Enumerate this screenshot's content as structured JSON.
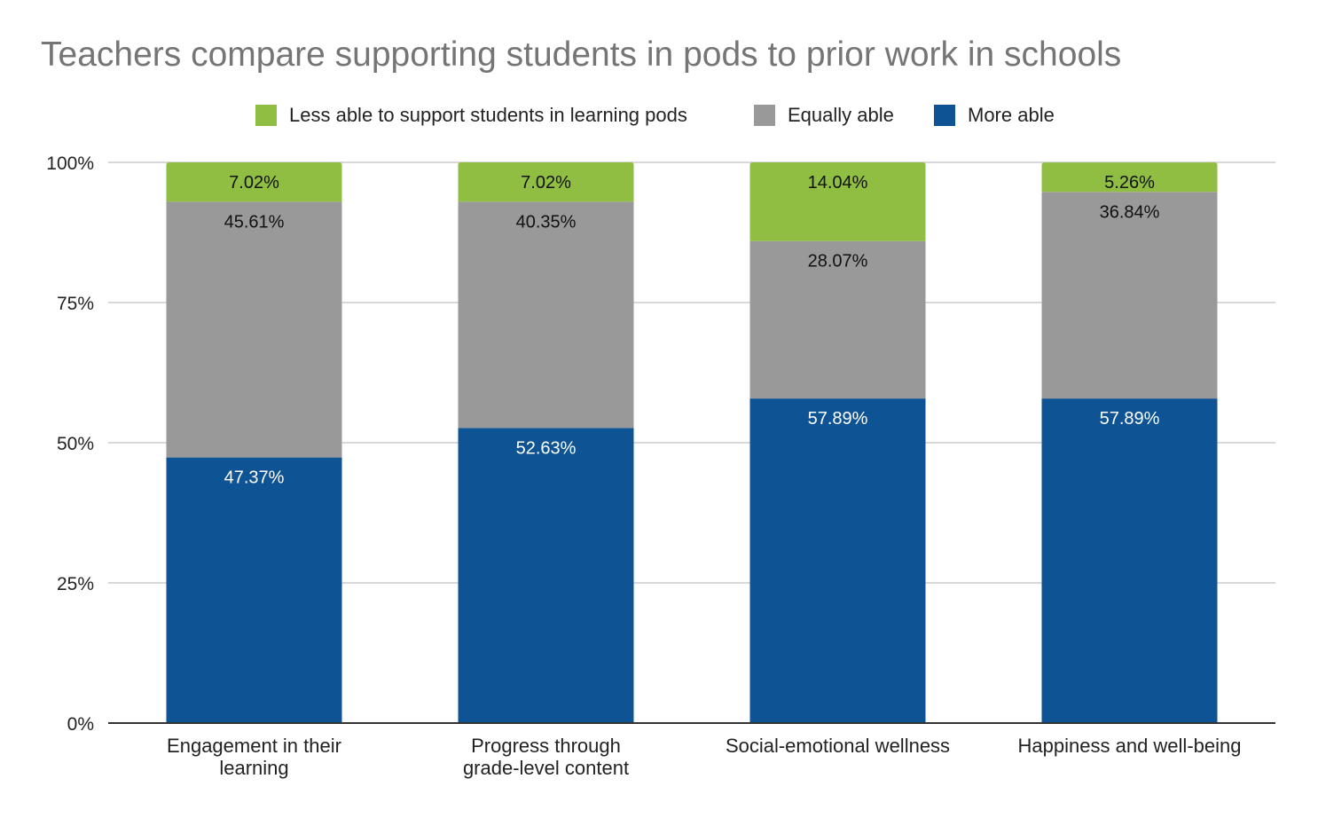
{
  "chart_data": {
    "type": "bar",
    "stacked": true,
    "title": "Teachers compare supporting students in pods to prior work in schools",
    "xlabel": "",
    "ylabel": "",
    "ylim": [
      0,
      100
    ],
    "y_ticks": [
      "0%",
      "25%",
      "50%",
      "75%",
      "100%"
    ],
    "y_tick_values": [
      0,
      25,
      50,
      75,
      100
    ],
    "categories": [
      [
        "Engagement in their",
        "learning"
      ],
      [
        "Progress through",
        "grade-level content"
      ],
      [
        "Social-emotional wellness"
      ],
      [
        "Happiness and well-being"
      ]
    ],
    "series": [
      {
        "name": "More able",
        "color": "#0e5394",
        "label_color": "#ffffff",
        "values": [
          47.37,
          52.63,
          57.89,
          57.89
        ],
        "labels": [
          "47.37%",
          "52.63%",
          "57.89%",
          "57.89%"
        ]
      },
      {
        "name": "Equally able",
        "color": "#999999",
        "label_color": "#111111",
        "values": [
          45.61,
          40.35,
          28.07,
          36.84
        ],
        "labels": [
          "45.61%",
          "40.35%",
          "28.07%",
          "36.84%"
        ]
      },
      {
        "name": "Less able to support students in learning pods",
        "color": "#8fbe42",
        "label_color": "#111111",
        "values": [
          7.02,
          7.02,
          14.04,
          5.26
        ],
        "labels": [
          "7.02%",
          "7.02%",
          "14.04%",
          "5.26%"
        ]
      }
    ],
    "legend": {
      "position": "top",
      "order": [
        "Less able to support students in learning pods",
        "Equally able",
        "More able"
      ]
    },
    "grid": true,
    "gridline_color": "#cccccc",
    "axis_color": "#333333"
  }
}
